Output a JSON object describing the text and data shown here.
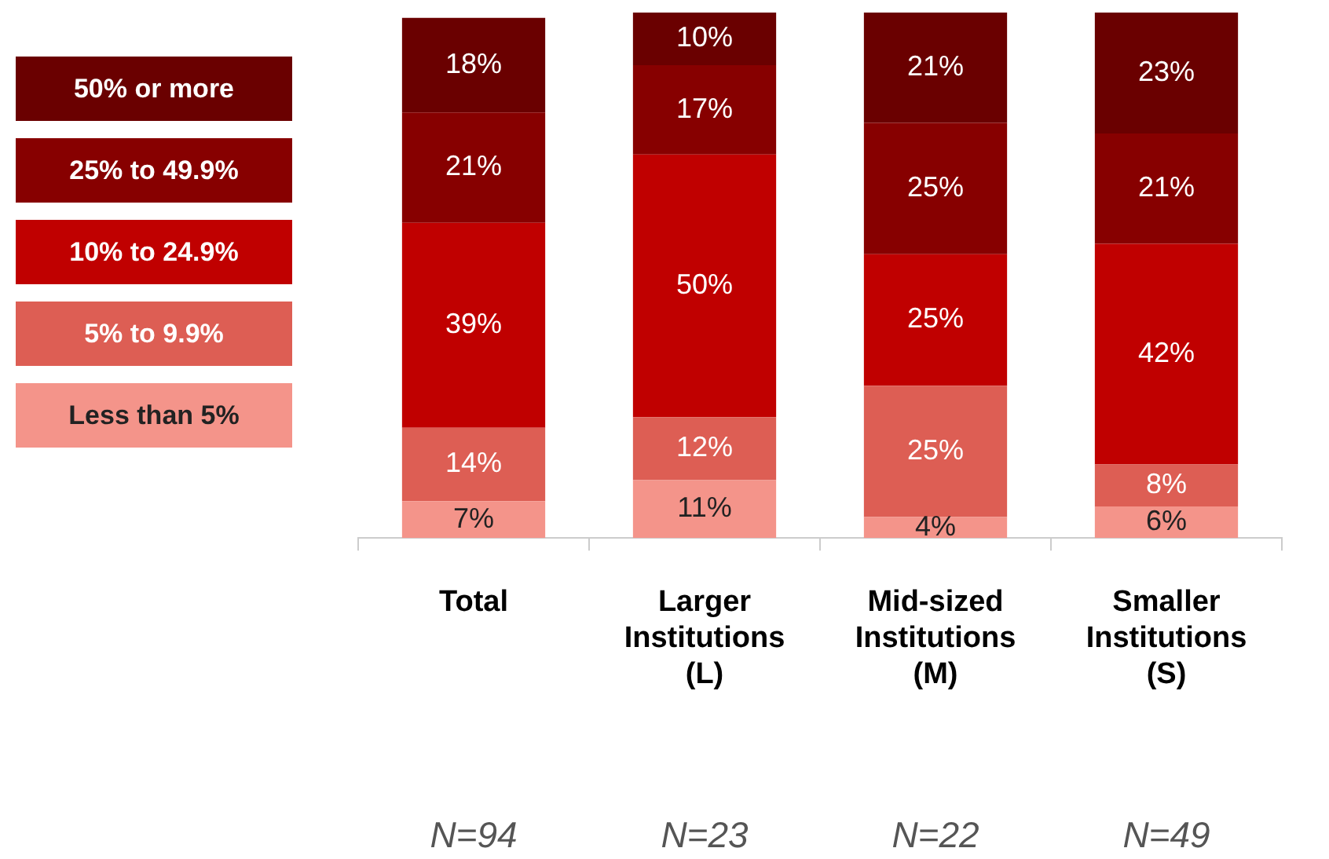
{
  "chart_data": {
    "type": "bar",
    "stacked": true,
    "categories": [
      "Total",
      "Larger Institutions (L)",
      "Mid-sized Institutions (M)",
      "Smaller Institutions (S)"
    ],
    "series": [
      {
        "name": "Less than 5%",
        "color": "#f4948a",
        "values": [
          7,
          11,
          4,
          6
        ],
        "value_labels": [
          "7%",
          "11%",
          "4%",
          "6%"
        ]
      },
      {
        "name": "5% to 9.9%",
        "color": "#dd5e54",
        "values": [
          14,
          12,
          25,
          8
        ],
        "value_labels": [
          "14%",
          "12%",
          "25%",
          "8%"
        ]
      },
      {
        "name": "10% to 24.9%",
        "color": "#c00000",
        "values": [
          39,
          50,
          25,
          42
        ],
        "value_labels": [
          "39%",
          "50%",
          "25%",
          "42%"
        ]
      },
      {
        "name": "25% to 49.9%",
        "color": "#870000",
        "values": [
          21,
          17,
          25,
          21
        ],
        "value_labels": [
          "21%",
          "17%",
          "25%",
          "21%"
        ]
      },
      {
        "name": "50% or more",
        "color": "#6a0000",
        "values": [
          18,
          10,
          21,
          23
        ],
        "value_labels": [
          "18%",
          "10%",
          "21%",
          "23%"
        ]
      }
    ],
    "tick_labels": "x",
    "legend": "left",
    "grid": false,
    "annotations": [
      "N=94",
      "N=23",
      "N=22",
      "N=49"
    ]
  }
}
